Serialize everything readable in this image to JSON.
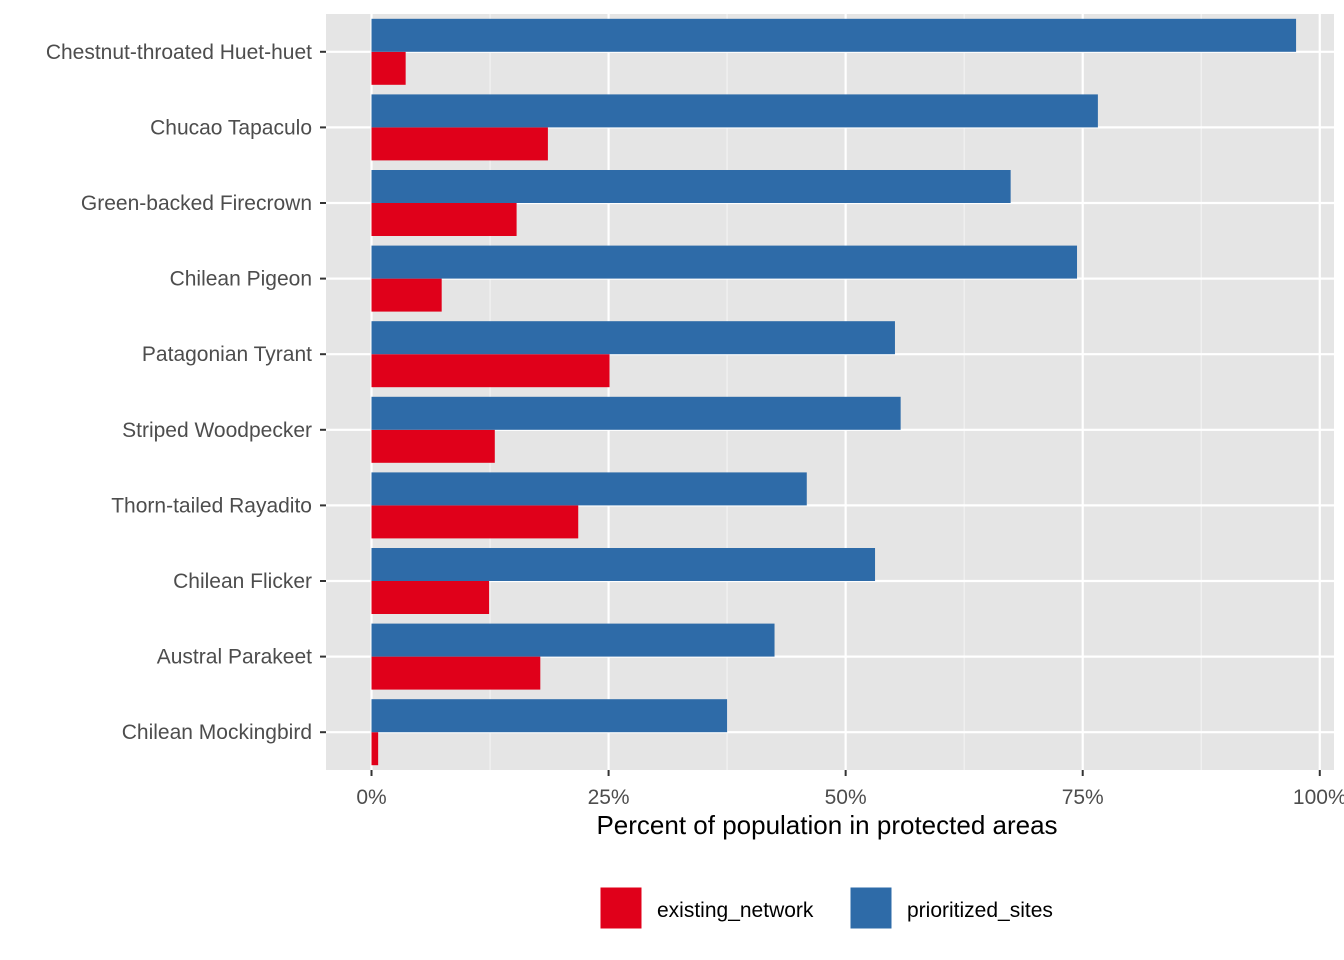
{
  "chart_data": {
    "type": "bar",
    "orientation": "horizontal",
    "categories": [
      "Chestnut-throated Huet-huet",
      "Chucao Tapaculo",
      "Green-backed Firecrown",
      "Chilean Pigeon",
      "Patagonian Tyrant",
      "Striped Woodpecker",
      "Thorn-tailed Rayadito",
      "Chilean Flicker",
      "Austral Parakeet",
      "Chilean Mockingbird"
    ],
    "series": [
      {
        "name": "existing_network",
        "color": "#E0001A",
        "values": [
          3.6,
          18.6,
          15.3,
          7.4,
          25.1,
          13.0,
          21.8,
          12.4,
          17.8,
          0.7
        ]
      },
      {
        "name": "prioritized_sites",
        "color": "#2E6BA8",
        "values": [
          97.5,
          76.6,
          67.4,
          74.4,
          55.2,
          55.8,
          45.9,
          53.1,
          42.5,
          37.5
        ]
      }
    ],
    "xlabel": "Percent of population in protected areas",
    "ylabel": "",
    "xlim": [
      -4.8,
      101.5
    ],
    "xticks": [
      0,
      25,
      50,
      75,
      100
    ],
    "xtick_labels": [
      "0%",
      "25%",
      "50%",
      "75%",
      "100%"
    ],
    "grid": true,
    "panel_background": "#E5E5E5",
    "legend_position": "bottom"
  }
}
